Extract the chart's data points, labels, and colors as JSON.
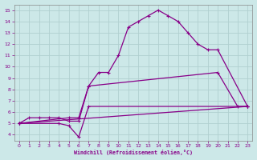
{
  "xlabel": "Windchill (Refroidissement éolien,°C)",
  "bg_color": "#cce8e8",
  "grid_color": "#b0d0d0",
  "line_color": "#880088",
  "xlim": [
    -0.5,
    23.5
  ],
  "ylim": [
    3.5,
    15.5
  ],
  "xticks": [
    0,
    1,
    2,
    3,
    4,
    5,
    6,
    7,
    8,
    9,
    10,
    11,
    12,
    13,
    14,
    15,
    16,
    17,
    18,
    19,
    20,
    21,
    22,
    23
  ],
  "yticks": [
    4,
    5,
    6,
    7,
    8,
    9,
    10,
    11,
    12,
    13,
    14,
    15
  ],
  "lines": [
    {
      "x": [
        0,
        1,
        2,
        3,
        4,
        5,
        6,
        7,
        8,
        9,
        10,
        11,
        12,
        13,
        14,
        15,
        16,
        17,
        18,
        19,
        20,
        23
      ],
      "y": [
        5.0,
        5.5,
        5.5,
        5.5,
        5.5,
        5.2,
        5.2,
        8.3,
        9.5,
        9.5,
        11.0,
        13.5,
        14.0,
        14.5,
        15.0,
        14.5,
        14.0,
        13.0,
        12.0,
        11.5,
        11.5,
        6.5
      ]
    },
    {
      "x": [
        0,
        4,
        5,
        6,
        7,
        23
      ],
      "y": [
        5.0,
        5.0,
        4.8,
        3.8,
        6.5,
        6.5
      ]
    },
    {
      "x": [
        0,
        23
      ],
      "y": [
        5.0,
        6.5
      ]
    },
    {
      "x": [
        0,
        5,
        6,
        7,
        20,
        22,
        23
      ],
      "y": [
        5.0,
        5.5,
        5.5,
        8.3,
        9.5,
        6.5,
        6.5
      ]
    }
  ]
}
